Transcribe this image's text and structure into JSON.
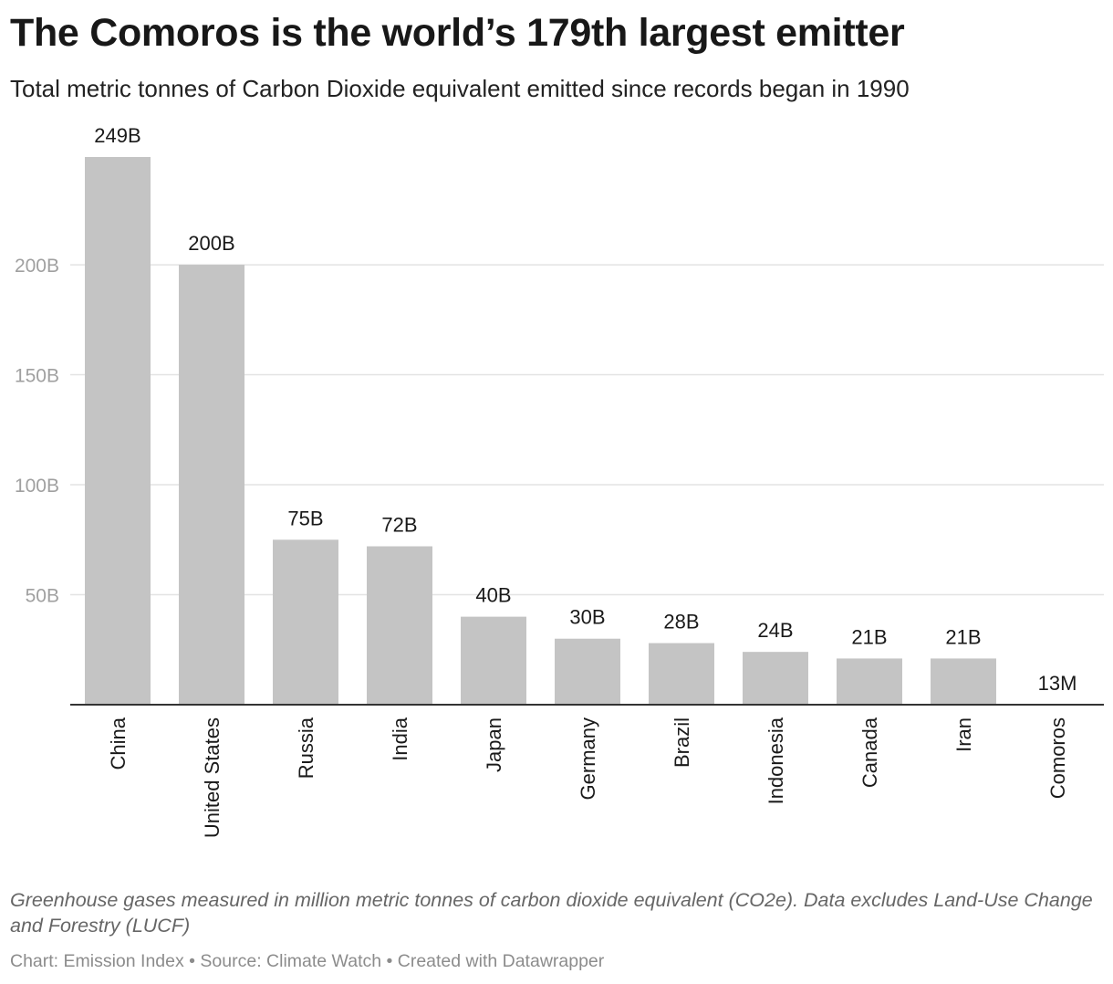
{
  "header": {
    "title": "The Comoros is the world’s 179th largest emitter",
    "subtitle": "Total metric tonnes of Carbon Dioxide equivalent emitted since records began in 1990"
  },
  "chart_data": {
    "type": "bar",
    "categories": [
      "China",
      "United States",
      "Russia",
      "India",
      "Japan",
      "Germany",
      "Brazil",
      "Indonesia",
      "Canada",
      "Iran",
      "Comoros"
    ],
    "values": [
      249000000000,
      200000000000,
      75000000000,
      72000000000,
      40000000000,
      30000000000,
      28000000000,
      24000000000,
      21000000000,
      21000000000,
      13000000
    ],
    "value_labels": [
      "249B",
      "200B",
      "75B",
      "72B",
      "40B",
      "30B",
      "28B",
      "24B",
      "21B",
      "21B",
      "13M"
    ],
    "title": "The Comoros is the world’s 179th largest emitter",
    "subtitle": "Total metric tonnes of Carbon Dioxide equivalent emitted since records began in 1990",
    "xlabel": "",
    "ylabel": "",
    "ylim": [
      0,
      249000000000
    ],
    "yticks": [
      50000000000,
      100000000000,
      150000000000,
      200000000000
    ],
    "ytick_labels": [
      "50B",
      "100B",
      "150B",
      "200B"
    ],
    "grid": true,
    "legend": "none",
    "colors": {
      "bar": "#c4c4c4",
      "grid": "#e3e3e3",
      "axis": "#333333",
      "tick_label": "#a0a0a0"
    }
  },
  "notes": "Greenhouse gases measured in million metric tonnes of carbon dioxide equivalent (CO2e). Data excludes Land-Use Change and Forestry (LUCF)",
  "footer": "Chart: Emission Index • Source: Climate Watch • Created with Datawrapper"
}
